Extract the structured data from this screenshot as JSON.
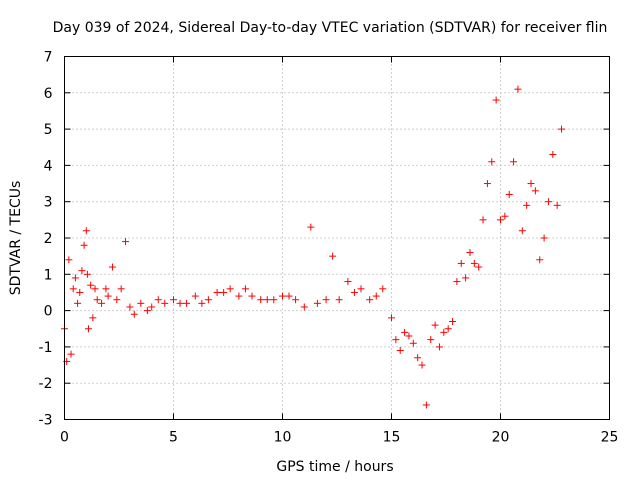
{
  "chart_data": {
    "type": "scatter",
    "title": "Day 039 of 2024, Sidereal Day-to-day VTEC variation (SDTVAR) for receiver flin",
    "xlabel": "GPS time / hours",
    "ylabel": "SDTVAR / TECUs",
    "xlim": [
      0,
      25
    ],
    "ylim": [
      -3,
      7
    ],
    "xticks": [
      "0",
      "5",
      "10",
      "15",
      "20",
      "25"
    ],
    "yticks": [
      "-3",
      "-2",
      "-1",
      "0",
      "1",
      "2",
      "3",
      "4",
      "5",
      "6",
      "7"
    ],
    "grid": true,
    "marker": "plus",
    "color": "#ff0000",
    "series": [
      {
        "name": "SDTVAR",
        "x": [
          0.0,
          0.1,
          0.2,
          0.3,
          0.4,
          0.5,
          0.6,
          0.7,
          0.8,
          0.9,
          1.0,
          1.05,
          1.1,
          1.2,
          1.3,
          1.4,
          1.5,
          1.7,
          1.9,
          2.0,
          2.2,
          2.4,
          2.6,
          2.8,
          3.0,
          3.2,
          3.5,
          3.8,
          4.0,
          4.3,
          4.6,
          5.0,
          5.3,
          5.6,
          6.0,
          6.3,
          6.6,
          7.0,
          7.3,
          7.6,
          8.0,
          8.3,
          8.6,
          9.0,
          9.3,
          9.6,
          10.0,
          10.3,
          10.6,
          11.0,
          11.3,
          11.6,
          12.0,
          12.3,
          12.6,
          13.0,
          13.3,
          13.6,
          14.0,
          14.3,
          14.6,
          15.0,
          15.2,
          15.4,
          15.6,
          15.8,
          16.0,
          16.2,
          16.4,
          16.6,
          16.8,
          17.0,
          17.2,
          17.4,
          17.6,
          17.8,
          18.0,
          18.2,
          18.4,
          18.6,
          18.8,
          19.0,
          19.2,
          19.4,
          19.6,
          19.8,
          20.0,
          20.2,
          20.4,
          20.6,
          20.8,
          21.0,
          21.2,
          21.4,
          21.6,
          21.8,
          22.0,
          22.2,
          22.4,
          22.6,
          22.8
        ],
        "y": [
          -0.5,
          -1.4,
          1.4,
          -1.2,
          0.6,
          0.9,
          0.2,
          0.5,
          1.1,
          1.8,
          2.2,
          1.0,
          -0.5,
          0.7,
          -0.2,
          0.6,
          0.3,
          0.2,
          0.6,
          0.4,
          1.2,
          0.3,
          0.6,
          1.9,
          0.1,
          -0.1,
          0.2,
          0.0,
          0.1,
          0.3,
          0.2,
          0.3,
          0.2,
          0.2,
          0.4,
          0.2,
          0.3,
          0.5,
          0.5,
          0.6,
          0.4,
          0.6,
          0.4,
          0.3,
          0.3,
          0.3,
          0.4,
          0.4,
          0.3,
          0.1,
          2.3,
          0.2,
          0.3,
          1.5,
          0.3,
          0.8,
          0.5,
          0.6,
          0.3,
          0.4,
          0.6,
          -0.2,
          -0.8,
          -1.1,
          -0.6,
          -0.7,
          -0.9,
          -1.3,
          -1.5,
          -2.6,
          -0.8,
          -0.4,
          -1.0,
          -0.6,
          -0.5,
          -0.3,
          0.8,
          1.3,
          0.9,
          1.6,
          1.3,
          1.2,
          2.5,
          3.5,
          4.1,
          5.8,
          2.5,
          2.6,
          3.2,
          4.1,
          6.1,
          2.2,
          2.9,
          3.5,
          3.3,
          1.4,
          2.0,
          3.0,
          4.3,
          2.9,
          5.0
        ]
      }
    ]
  }
}
